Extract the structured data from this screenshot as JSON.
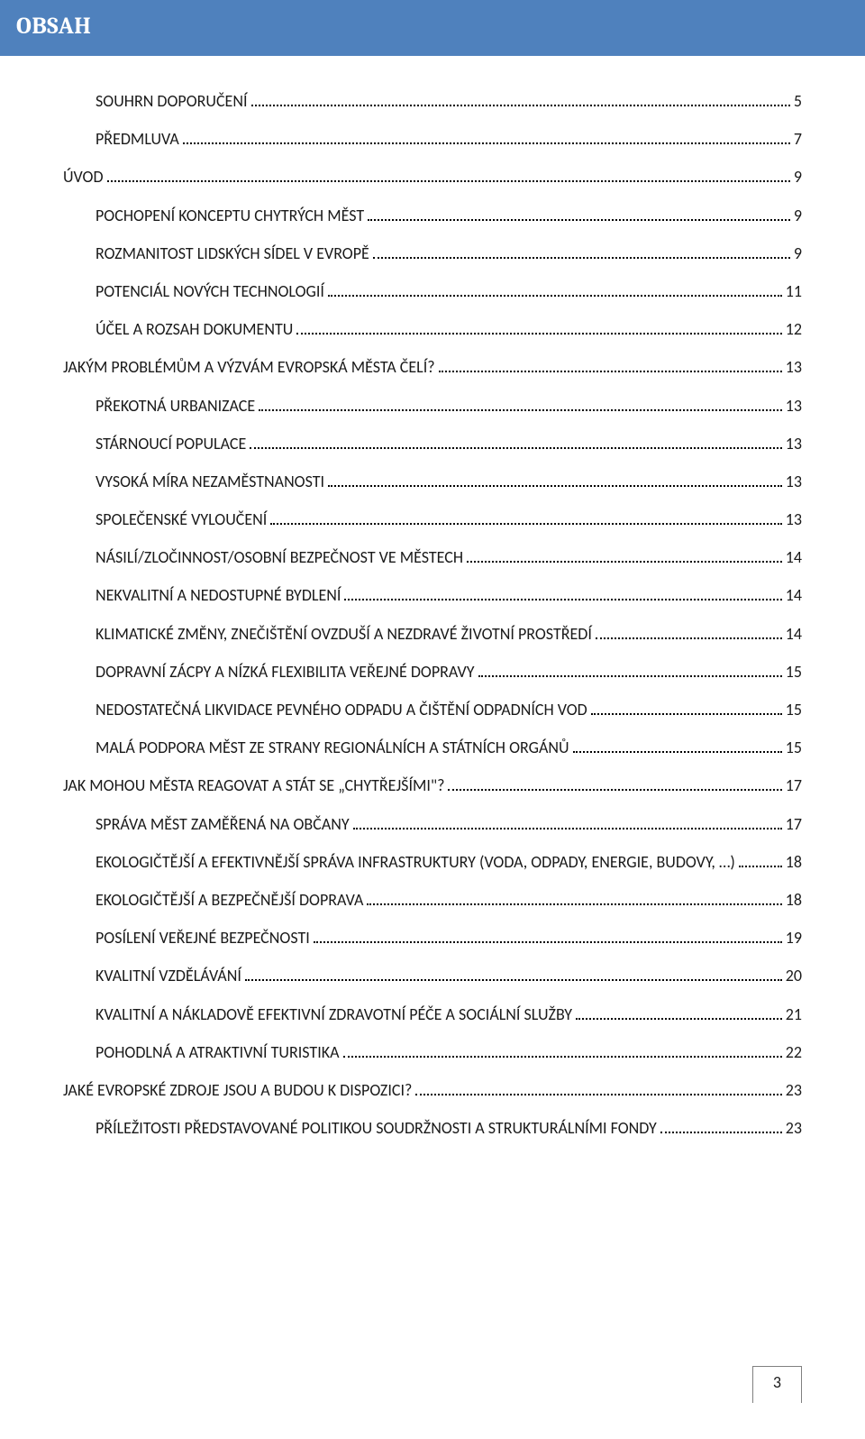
{
  "header": {
    "title": "OBSAH"
  },
  "pageNumber": "3",
  "colors": {
    "header_bg": "#4f81bd",
    "header_text": "#ffffff",
    "body_bg": "#ffffff",
    "text": "#1a1a1a",
    "footer_border": "#808080"
  },
  "typography": {
    "header_fontsize": 26,
    "row_fontsize": 18
  },
  "toc": [
    {
      "level": 1,
      "label": "SOUHRN DOPORUČENÍ",
      "page": "5"
    },
    {
      "level": 1,
      "label": "PŘEDMLUVA",
      "page": "7"
    },
    {
      "level": 0,
      "label": "ÚVOD",
      "page": "9"
    },
    {
      "level": 1,
      "label": "POCHOPENÍ KONCEPTU CHYTRÝCH MĚST",
      "page": "9"
    },
    {
      "level": 1,
      "label": "ROZMANITOST LIDSKÝCH SÍDEL V EVROPĚ",
      "page": "9"
    },
    {
      "level": 1,
      "label": "POTENCIÁL NOVÝCH TECHNOLOGIÍ",
      "page": "11"
    },
    {
      "level": 1,
      "label": "ÚČEL A ROZSAH DOKUMENTU",
      "page": "12"
    },
    {
      "level": 0,
      "label": "JAKÝM PROBLÉMŮM A VÝZVÁM EVROPSKÁ MĚSTA ČELÍ?",
      "page": "13"
    },
    {
      "level": 1,
      "label": "PŘEKOTNÁ URBANIZACE",
      "page": "13"
    },
    {
      "level": 1,
      "label": "STÁRNOUCÍ POPULACE",
      "page": "13"
    },
    {
      "level": 1,
      "label": "VYSOKÁ MÍRA NEZAMĚSTNANOSTI",
      "page": "13"
    },
    {
      "level": 1,
      "label": "SPOLEČENSKÉ VYLOUČENÍ",
      "page": "13"
    },
    {
      "level": 1,
      "label": "NÁSILÍ/ZLOČINNOST/OSOBNÍ BEZPEČNOST VE MĚSTECH",
      "page": "14"
    },
    {
      "level": 1,
      "label": "NEKVALITNÍ A NEDOSTUPNÉ BYDLENÍ",
      "page": "14"
    },
    {
      "level": 1,
      "label": "KLIMATICKÉ ZMĚNY, ZNEČIŠTĚNÍ OVZDUŠÍ A NEZDRAVÉ ŽIVOTNÍ PROSTŘEDÍ",
      "page": "14"
    },
    {
      "level": 1,
      "label": "DOPRAVNÍ ZÁCPY A NÍZKÁ FLEXIBILITA VEŘEJNÉ DOPRAVY",
      "page": "15"
    },
    {
      "level": 1,
      "label": "NEDOSTATEČNÁ LIKVIDACE PEVNÉHO ODPADU A ČIŠTĚNÍ ODPADNÍCH VOD",
      "page": "15"
    },
    {
      "level": 1,
      "label": "MALÁ PODPORA MĚST ZE STRANY REGIONÁLNÍCH A STÁTNÍCH ORGÁNŮ",
      "page": "15"
    },
    {
      "level": 0,
      "label": "JAK MOHOU MĚSTA REAGOVAT A STÁT SE „CHYTŘEJŠÍMI\"?",
      "page": "17"
    },
    {
      "level": 1,
      "label": "SPRÁVA MĚST ZAMĚŘENÁ NA OBČANY",
      "page": "17"
    },
    {
      "level": 1,
      "label": "EKOLOGIČTĚJŠÍ A EFEKTIVNĚJŠÍ SPRÁVA INFRASTRUKTURY (VODA, ODPADY, ENERGIE, BUDOVY, …)",
      "page": "18"
    },
    {
      "level": 1,
      "label": "EKOLOGIČTĚJŠÍ A BEZPEČNĚJŠÍ DOPRAVA",
      "page": "18"
    },
    {
      "level": 1,
      "label": "POSÍLENÍ VEŘEJNÉ BEZPEČNOSTI",
      "page": "19"
    },
    {
      "level": 1,
      "label": "KVALITNÍ VZDĚLÁVÁNÍ",
      "page": "20"
    },
    {
      "level": 1,
      "label": "KVALITNÍ A NÁKLADOVĚ EFEKTIVNÍ ZDRAVOTNÍ PÉČE A SOCIÁLNÍ SLUŽBY",
      "page": "21"
    },
    {
      "level": 1,
      "label": "POHODLNÁ A ATRAKTIVNÍ TURISTIKA",
      "page": "22"
    },
    {
      "level": 0,
      "label": "JAKÉ EVROPSKÉ ZDROJE JSOU A BUDOU K DISPOZICI?",
      "page": "23"
    },
    {
      "level": 1,
      "label": "PŘÍLEŽITOSTI PŘEDSTAVOVANÉ POLITIKOU SOUDRŽNOSTI A STRUKTURÁLNÍMI FONDY",
      "page": "23"
    }
  ]
}
